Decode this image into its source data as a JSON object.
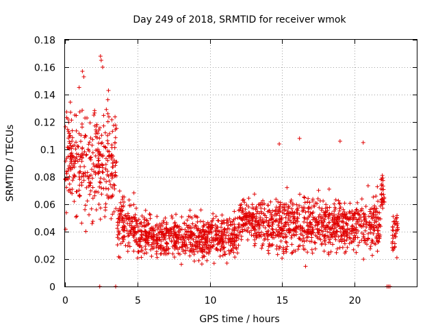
{
  "chart_data": {
    "type": "scatter",
    "title": "Day 249 of 2018, SRMTID for receiver wmok",
    "xlabel": "GPS time / hours",
    "ylabel": "SRMTID / TECUs",
    "xlim": [
      0,
      24.3
    ],
    "ylim": [
      0,
      0.18
    ],
    "xticks": [
      0,
      5,
      10,
      15,
      20
    ],
    "xtick_labels": [
      "0",
      "5",
      "10",
      "15",
      "20"
    ],
    "yticks": [
      0,
      0.02,
      0.04,
      0.06,
      0.08,
      0.1,
      0.12,
      0.14,
      0.16,
      0.18
    ],
    "ytick_labels": [
      "0",
      "0.02",
      "0.04",
      "0.06",
      "0.08",
      "0.1",
      "0.12",
      "0.14",
      "0.16",
      "0.18"
    ],
    "grid": true,
    "marker": "plus",
    "color": "#e00000",
    "series": [
      {
        "name": "SRMTID",
        "segments": [
          {
            "x_start": 0.0,
            "x_end": 3.6,
            "y_center": 0.09,
            "y_spread": 0.03
          },
          {
            "x_start": 3.6,
            "x_end": 5.0,
            "y_center": 0.045,
            "y_spread": 0.015
          },
          {
            "x_start": 5.0,
            "x_end": 12.0,
            "y_center": 0.036,
            "y_spread": 0.012
          },
          {
            "x_start": 12.0,
            "x_end": 13.0,
            "y_center": 0.05,
            "y_spread": 0.012
          },
          {
            "x_start": 13.0,
            "x_end": 21.8,
            "y_center": 0.045,
            "y_spread": 0.015
          },
          {
            "x_start": 21.8,
            "x_end": 22.1,
            "y_center": 0.07,
            "y_spread": 0.01
          },
          {
            "x_start": 22.6,
            "x_end": 23.0,
            "y_center": 0.04,
            "y_spread": 0.012
          }
        ],
        "highlights": [
          {
            "x": 1.2,
            "y": 0.157
          },
          {
            "x": 1.3,
            "y": 0.153
          },
          {
            "x": 2.45,
            "y": 0.168
          },
          {
            "x": 2.5,
            "y": 0.165
          },
          {
            "x": 2.6,
            "y": 0.16
          },
          {
            "x": 3.0,
            "y": 0.143
          },
          {
            "x": 14.8,
            "y": 0.104
          },
          {
            "x": 16.2,
            "y": 0.108
          },
          {
            "x": 19.0,
            "y": 0.106
          },
          {
            "x": 20.6,
            "y": 0.105
          },
          {
            "x": 2.4,
            "y": 0
          },
          {
            "x": 3.5,
            "y": 0
          },
          {
            "x": 22.25,
            "y": 0
          },
          {
            "x": 22.35,
            "y": 0
          },
          {
            "x": 22.45,
            "y": 0
          }
        ]
      }
    ]
  }
}
